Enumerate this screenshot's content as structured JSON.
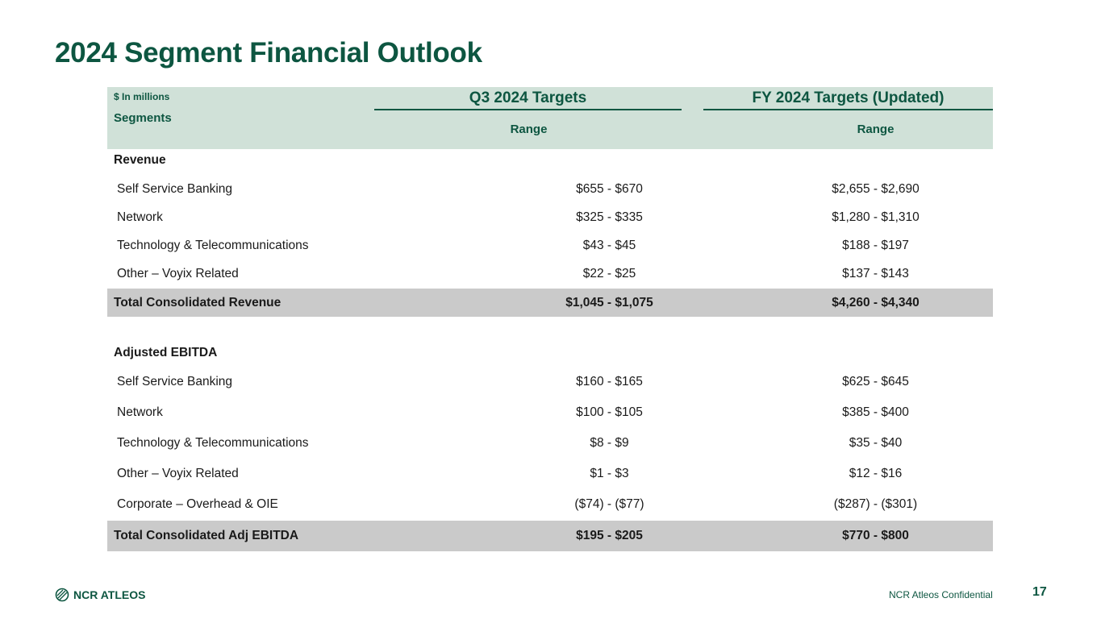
{
  "title": "2024 Segment Financial Outlook",
  "header": {
    "units": "$ In millions",
    "segments": "Segments",
    "q3": "Q3 2024 Targets",
    "fy": "FY 2024 Targets (Updated)",
    "range_q3": "Range",
    "range_fy": "Range"
  },
  "rows": [
    {
      "type": "section",
      "label": "Revenue"
    },
    {
      "type": "item",
      "label": "Self Service Banking",
      "q3": "$655 - $670",
      "fy": "$2,655 - $2,690"
    },
    {
      "type": "item",
      "label": "Network",
      "q3": "$325 - $335",
      "fy": "$1,280 - $1,310"
    },
    {
      "type": "item",
      "label": "Technology & Telecommunications",
      "q3": "$43 - $45",
      "fy": "$188 - $197"
    },
    {
      "type": "item",
      "label": "Other – Voyix Related",
      "q3": "$22 - $25",
      "fy": "$137 - $143"
    },
    {
      "type": "total",
      "label": "Total Consolidated Revenue",
      "q3": "$1,045 - $1,075",
      "fy": "$4,260 - $4,340"
    },
    {
      "type": "section",
      "label": "Adjusted EBITDA"
    },
    {
      "type": "item",
      "label": "Self Service Banking",
      "q3": "$160 - $165",
      "fy": "$625 - $645"
    },
    {
      "type": "item",
      "label": "Network",
      "q3": "$100 - $105",
      "fy": "$385 - $400"
    },
    {
      "type": "item",
      "label": "Technology & Telecommunications",
      "q3": "$8 - $9",
      "fy": "$35 - $40"
    },
    {
      "type": "item",
      "label": "Other – Voyix Related",
      "q3": "$1 - $3",
      "fy": "$12 - $16"
    },
    {
      "type": "item",
      "label": "Corporate – Overhead & OIE",
      "q3": "($74) - ($77)",
      "fy": "($287) - ($301)"
    },
    {
      "type": "total",
      "label": "Total Consolidated Adj EBITDA",
      "q3": "$195 - $205",
      "fy": "$770 - $800"
    }
  ],
  "footer": {
    "logo": "NCR ATLEOS",
    "confidential": "NCR Atleos Confidential",
    "page": "17"
  }
}
